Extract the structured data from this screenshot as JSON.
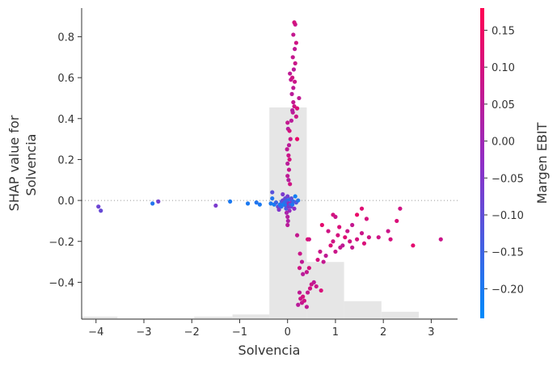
{
  "chart_data": {
    "type": "scatter",
    "xlabel": "Solvencia",
    "ylabel_lines": [
      "SHAP value for",
      "Solvencia"
    ],
    "colorbar_label": "Margen EBIT",
    "xlim": [
      -4.3,
      3.55
    ],
    "ylim": [
      -0.58,
      0.94
    ],
    "xticks": [
      -4,
      -3,
      -2,
      -1,
      0,
      1,
      2,
      3
    ],
    "xtick_labels": [
      "−4",
      "−3",
      "−2",
      "−1",
      "0",
      "1",
      "2",
      "3"
    ],
    "yticks": [
      -0.4,
      -0.2,
      0.0,
      0.2,
      0.4,
      0.6,
      0.8
    ],
    "ytick_labels": [
      "−0.4",
      "−0.2",
      "0.0",
      "0.2",
      "0.4",
      "0.6",
      "0.8"
    ],
    "colorbar_range": [
      -0.24,
      0.18
    ],
    "colorbar_ticks": [
      -0.2,
      -0.15,
      -0.1,
      -0.05,
      0.0,
      0.05,
      0.1,
      0.15
    ],
    "colorbar_tick_labels": [
      "−0.20",
      "−0.15",
      "−0.10",
      "−0.05",
      "0.00",
      "0.05",
      "0.10",
      "0.15"
    ],
    "colors": {
      "low": "#008bfb",
      "mid": "#8f2ec6",
      "high": "#ff0052",
      "histogram": "#e6e6e6"
    },
    "histogram": {
      "bins": [
        {
          "x0": -4.3,
          "x1": -3.55,
          "h": 0.012
        },
        {
          "x0": -3.55,
          "x1": -2.75,
          "h": 0.004
        },
        {
          "x0": -2.75,
          "x1": -1.95,
          "h": 0.004
        },
        {
          "x0": -1.95,
          "x1": -1.15,
          "h": 0.012
        },
        {
          "x0": -1.15,
          "x1": -0.38,
          "h": 0.022
        },
        {
          "x0": -0.38,
          "x1": 0.4,
          "h": 1.0
        },
        {
          "x0": 0.4,
          "x1": 1.18,
          "h": 0.27
        },
        {
          "x0": 1.18,
          "x1": 1.96,
          "h": 0.085
        },
        {
          "x0": 1.96,
          "x1": 2.74,
          "h": 0.035
        },
        {
          "x0": 2.74,
          "x1": 3.55,
          "h": 0.006
        }
      ]
    },
    "points": [
      [
        -3.95,
        -0.03,
        -0.08
      ],
      [
        -3.9,
        -0.05,
        -0.09
      ],
      [
        -2.82,
        -0.015,
        -0.19
      ],
      [
        -2.7,
        -0.005,
        -0.07
      ],
      [
        -1.5,
        -0.025,
        -0.06
      ],
      [
        -1.2,
        -0.005,
        -0.2
      ],
      [
        -0.83,
        -0.015,
        -0.2
      ],
      [
        -0.65,
        -0.01,
        -0.19
      ],
      [
        -0.58,
        -0.02,
        -0.2
      ],
      [
        -0.35,
        -0.015,
        -0.2
      ],
      [
        -0.32,
        0.01,
        -0.19
      ],
      [
        -0.32,
        0.04,
        -0.11
      ],
      [
        -0.28,
        -0.02,
        -0.21
      ],
      [
        -0.24,
        -0.01,
        -0.15
      ],
      [
        -0.2,
        -0.03,
        -0.1
      ],
      [
        -0.18,
        -0.045,
        -0.05
      ],
      [
        -0.16,
        -0.02,
        -0.2
      ],
      [
        -0.13,
        -0.03,
        -0.18
      ],
      [
        -0.12,
        -0.005,
        -0.14
      ],
      [
        -0.1,
        0.0,
        -0.09
      ],
      [
        -0.1,
        0.03,
        -0.06
      ],
      [
        -0.08,
        -0.02,
        -0.22
      ],
      [
        -0.06,
        -0.01,
        -0.18
      ],
      [
        -0.05,
        0.01,
        -0.1
      ],
      [
        -0.04,
        -0.025,
        -0.15
      ],
      [
        -0.03,
        -0.04,
        -0.12
      ],
      [
        -0.02,
        -0.02,
        -0.2
      ],
      [
        -0.01,
        0.0,
        -0.17
      ],
      [
        0.0,
        -0.01,
        -0.13
      ],
      [
        0.0,
        0.02,
        -0.07
      ],
      [
        0.02,
        -0.03,
        -0.05
      ],
      [
        0.03,
        -0.015,
        0.0
      ],
      [
        0.04,
        -0.05,
        -0.02
      ],
      [
        0.05,
        0.005,
        -0.19
      ],
      [
        0.06,
        -0.02,
        -0.16
      ],
      [
        0.07,
        -0.03,
        -0.08
      ],
      [
        0.08,
        0.01,
        -0.11
      ],
      [
        0.09,
        -0.01,
        -0.04
      ],
      [
        0.1,
        -0.02,
        -0.2
      ],
      [
        0.12,
        -0.005,
        -0.17
      ],
      [
        0.14,
        -0.04,
        -0.03
      ],
      [
        0.16,
        0.02,
        -0.21
      ],
      [
        0.18,
        -0.01,
        -0.12
      ],
      [
        0.22,
        0.0,
        -0.19
      ],
      [
        -0.02,
        -0.06,
        0.02
      ],
      [
        0.0,
        -0.08,
        0.04
      ],
      [
        0.01,
        -0.1,
        0.03
      ],
      [
        0.0,
        -0.12,
        0.05
      ],
      [
        0.02,
        0.22,
        0.08
      ],
      [
        0.0,
        0.18,
        0.05
      ],
      [
        0.04,
        0.2,
        0.1
      ],
      [
        0.03,
        0.15,
        0.07
      ],
      [
        0.0,
        0.12,
        0.06
      ],
      [
        0.02,
        0.1,
        0.04
      ],
      [
        0.05,
        0.08,
        0.09
      ],
      [
        -0.01,
        0.25,
        0.06
      ],
      [
        0.03,
        0.27,
        0.05
      ],
      [
        0.06,
        0.3,
        0.08
      ],
      [
        0.01,
        0.35,
        0.04
      ],
      [
        0.04,
        0.34,
        0.1
      ],
      [
        0.0,
        0.38,
        0.07
      ],
      [
        0.08,
        0.39,
        0.05
      ],
      [
        0.11,
        0.43,
        0.06
      ],
      [
        0.14,
        0.46,
        0.09
      ],
      [
        0.12,
        0.48,
        0.07
      ],
      [
        0.1,
        0.44,
        0.04
      ],
      [
        0.18,
        0.41,
        0.08
      ],
      [
        0.2,
        0.45,
        0.11
      ],
      [
        0.09,
        0.52,
        0.05
      ],
      [
        0.12,
        0.55,
        0.06
      ],
      [
        0.15,
        0.58,
        0.08
      ],
      [
        0.07,
        0.59,
        0.07
      ],
      [
        0.1,
        0.6,
        0.09
      ],
      [
        0.05,
        0.62,
        0.06
      ],
      [
        0.13,
        0.64,
        0.05
      ],
      [
        0.16,
        0.67,
        0.08
      ],
      [
        0.11,
        0.7,
        0.07
      ],
      [
        0.15,
        0.74,
        0.06
      ],
      [
        0.18,
        0.77,
        0.09
      ],
      [
        0.12,
        0.81,
        0.07
      ],
      [
        0.16,
        0.86,
        0.08
      ],
      [
        0.14,
        0.87,
        0.1
      ],
      [
        0.2,
        0.3,
        0.14
      ],
      [
        0.24,
        0.5,
        0.06
      ],
      [
        0.2,
        -0.17,
        0.07
      ],
      [
        0.26,
        -0.26,
        0.08
      ],
      [
        0.3,
        -0.3,
        0.06
      ],
      [
        0.25,
        -0.33,
        0.09
      ],
      [
        0.32,
        -0.36,
        0.05
      ],
      [
        0.4,
        -0.35,
        0.07
      ],
      [
        0.45,
        -0.33,
        0.1
      ],
      [
        0.5,
        -0.41,
        0.08
      ],
      [
        0.55,
        -0.4,
        0.06
      ],
      [
        0.47,
        -0.43,
        0.09
      ],
      [
        0.42,
        -0.45,
        0.07
      ],
      [
        0.6,
        -0.42,
        0.08
      ],
      [
        0.63,
        -0.29,
        0.1
      ],
      [
        0.7,
        -0.44,
        0.11
      ],
      [
        0.25,
        -0.45,
        0.06
      ],
      [
        0.27,
        -0.48,
        0.08
      ],
      [
        0.3,
        -0.5,
        0.07
      ],
      [
        0.35,
        -0.49,
        0.09
      ],
      [
        0.4,
        -0.52,
        0.06
      ],
      [
        0.22,
        -0.51,
        0.05
      ],
      [
        0.32,
        -0.47,
        0.1
      ],
      [
        0.42,
        -0.19,
        0.12
      ],
      [
        0.45,
        -0.19,
        0.09
      ],
      [
        0.68,
        -0.25,
        0.08
      ],
      [
        0.75,
        -0.3,
        0.07
      ],
      [
        0.8,
        -0.27,
        0.06
      ],
      [
        0.9,
        -0.22,
        0.11
      ],
      [
        0.95,
        -0.2,
        0.09
      ],
      [
        1.0,
        -0.25,
        0.08
      ],
      [
        1.05,
        -0.17,
        0.1
      ],
      [
        1.1,
        -0.23,
        0.07
      ],
      [
        1.2,
        -0.18,
        0.12
      ],
      [
        1.25,
        -0.15,
        0.08
      ],
      [
        1.3,
        -0.2,
        0.09
      ],
      [
        1.35,
        -0.23,
        0.07
      ],
      [
        1.45,
        -0.19,
        0.1
      ],
      [
        1.55,
        -0.16,
        0.08
      ],
      [
        1.6,
        -0.21,
        0.11
      ],
      [
        1.7,
        -0.18,
        0.09
      ],
      [
        1.15,
        -0.22,
        0.06
      ],
      [
        0.72,
        -0.12,
        0.13
      ],
      [
        0.95,
        -0.07,
        0.1
      ],
      [
        1.0,
        -0.08,
        0.08
      ],
      [
        1.08,
        -0.13,
        0.11
      ],
      [
        1.45,
        -0.07,
        0.14
      ],
      [
        1.55,
        -0.04,
        0.12
      ],
      [
        1.65,
        -0.09,
        0.1
      ],
      [
        1.9,
        -0.18,
        0.09
      ],
      [
        2.1,
        -0.15,
        0.08
      ],
      [
        2.15,
        -0.19,
        0.1
      ],
      [
        2.28,
        -0.1,
        0.11
      ],
      [
        2.35,
        -0.04,
        0.09
      ],
      [
        2.62,
        -0.22,
        0.13
      ],
      [
        3.2,
        -0.19,
        0.08
      ],
      [
        1.35,
        -0.12,
        0.07
      ],
      [
        0.85,
        -0.15,
        0.09
      ]
    ]
  }
}
